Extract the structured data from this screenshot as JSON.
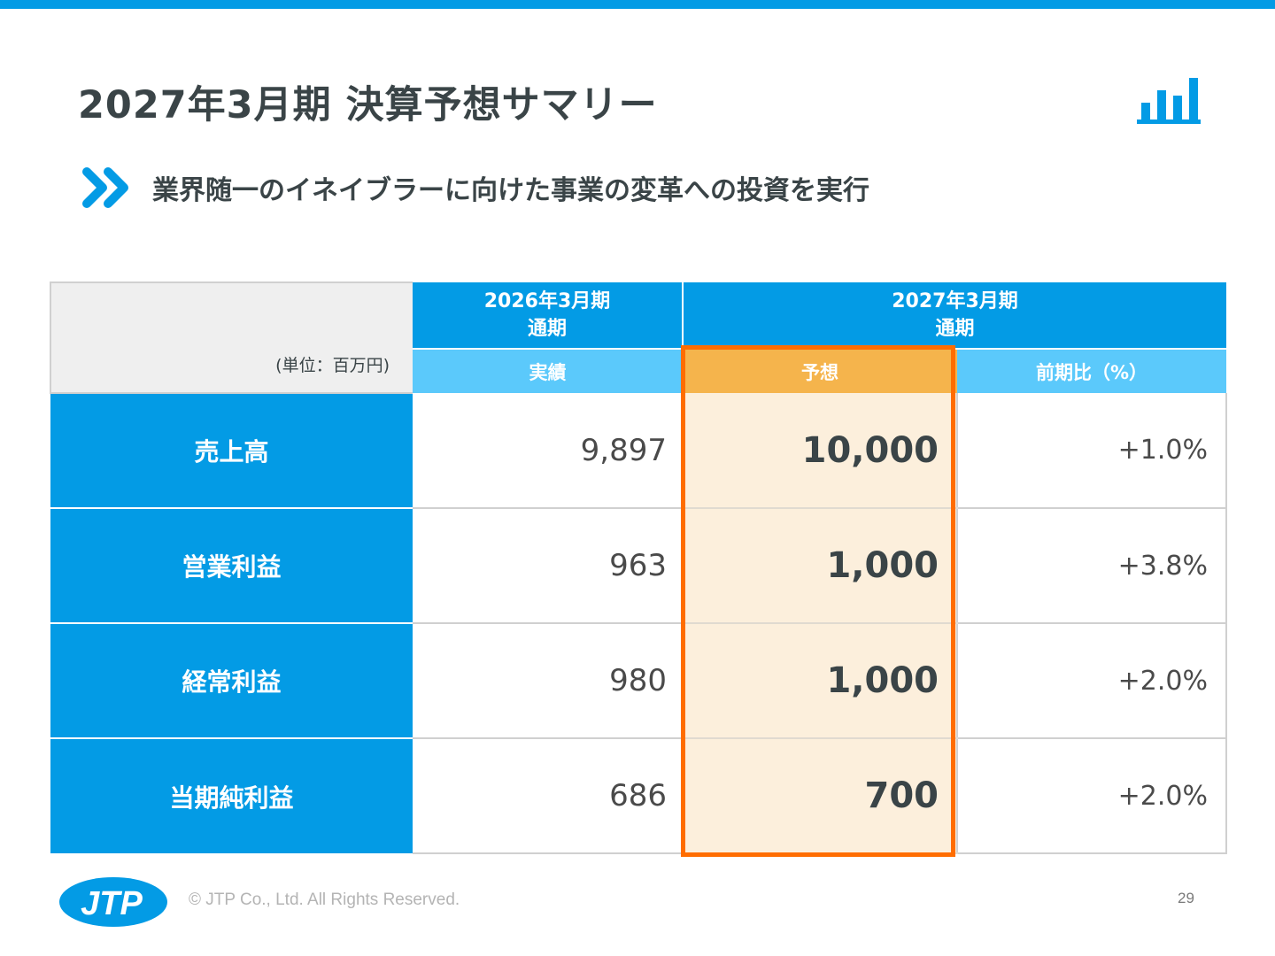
{
  "header": {
    "title": "2027年3月期 決算予想サマリー",
    "icon": "bar-chart-icon"
  },
  "subtitle": {
    "icon": "double-chevron-icon",
    "text": "業界随一のイネイブラーに向けた事業の変革への投資を実行"
  },
  "table": {
    "unit_label": "(単位：百万円)",
    "period_2026": {
      "year": "2026年3月期",
      "period": "通期"
    },
    "period_2027": {
      "year": "2027年3月期",
      "period": "通期"
    },
    "columns": {
      "actual": "実績",
      "forecast": "予想",
      "yoy": "前期比（%）"
    },
    "rows": [
      {
        "label": "売上高",
        "actual": "9,897",
        "forecast": "10,000",
        "yoy": "+1.0%"
      },
      {
        "label": "営業利益",
        "actual": "963",
        "forecast": "1,000",
        "yoy": "+3.8%"
      },
      {
        "label": "経常利益",
        "actual": "980",
        "forecast": "1,000",
        "yoy": "+2.0%"
      },
      {
        "label": "当期純利益",
        "actual": "686",
        "forecast": "700",
        "yoy": "+2.0%"
      }
    ]
  },
  "footer": {
    "logo_text": "JTP",
    "copyright": "© JTP Co., Ltd. All Rights Reserved.",
    "page_number": "29"
  },
  "colors": {
    "primary_blue": "#039be5",
    "light_blue": "#5bc9fb",
    "forecast_header": "#f5b44c",
    "forecast_bg": "#fcefdc",
    "highlight_border": "#ff6d00"
  }
}
